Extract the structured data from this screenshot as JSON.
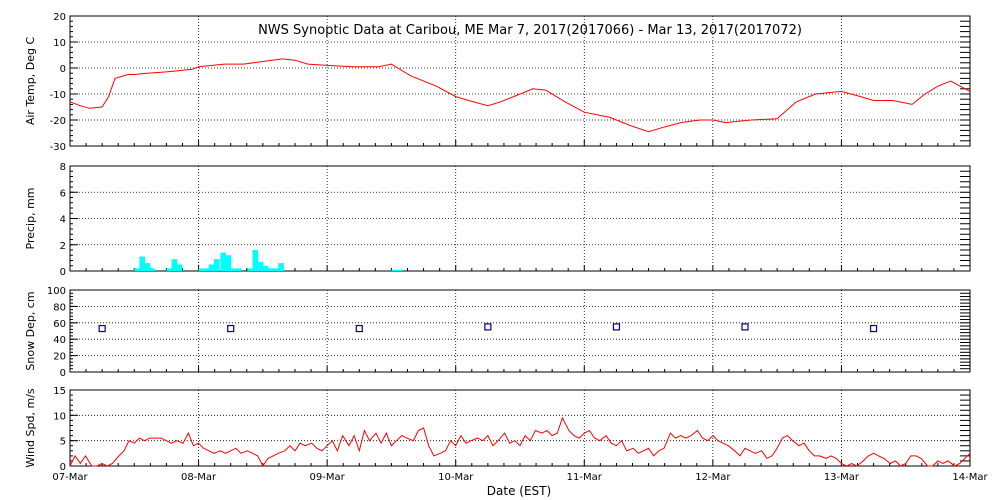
{
  "title": "NWS Synoptic Data at Caribou, ME   Mar  7, 2017(2017066) - Mar 13, 2017(2017072)",
  "x_label": "Date (EST)",
  "x_tick_labels": [
    "07-Mar",
    "08-Mar",
    "09-Mar",
    "10-Mar",
    "11-Mar",
    "12-Mar",
    "13-Mar",
    "14-Mar"
  ],
  "colors": {
    "line": "#ff0000",
    "precip": "#00ffff",
    "snow": "#00008b",
    "grid": "#000000"
  },
  "chart_data": [
    {
      "type": "line",
      "ylabel": "Air Temp, Deg C",
      "ylim": [
        -30,
        20
      ],
      "yticks": [
        -30,
        -20,
        -10,
        0,
        10,
        20
      ],
      "x_unit": "days since 07-Mar 00:00 EST",
      "xlim": [
        0,
        7
      ],
      "grid": true,
      "series": [
        {
          "x": [
            0,
            0.08,
            0.15,
            0.25,
            0.3,
            0.35,
            0.45,
            0.5,
            0.6,
            0.75,
            0.85,
            0.95,
            1.0,
            1.2,
            1.35,
            1.5,
            1.65,
            1.75,
            1.85,
            2.0,
            2.2,
            2.4,
            2.5,
            2.65,
            2.85,
            3.0,
            3.1,
            3.25,
            3.35,
            3.45,
            3.6,
            3.7,
            3.85,
            4.0,
            4.1,
            4.2,
            4.3,
            4.35,
            4.5,
            4.6,
            4.75,
            4.9,
            5.0,
            5.1,
            5.2,
            5.3,
            5.5,
            5.65,
            5.8,
            6.0,
            6.15,
            6.25,
            6.4,
            6.55,
            6.65,
            6.75,
            6.85,
            7.0
          ],
          "y": [
            -13,
            -14.5,
            -15.5,
            -15,
            -11,
            -4,
            -2.5,
            -2.5,
            -2,
            -1.5,
            -1,
            -0.5,
            0.5,
            1.5,
            1.5,
            2.5,
            3.5,
            3,
            1.5,
            1,
            0.5,
            0.5,
            1.5,
            -3,
            -7,
            -11,
            -12.5,
            -14.5,
            -13,
            -11,
            -8,
            -8.5,
            -13,
            -17,
            -18,
            -19,
            -21,
            -22,
            -24.5,
            -23,
            -21,
            -20,
            -20,
            -21,
            -20.5,
            -20,
            -19.5,
            -13,
            -10,
            -9,
            -11,
            -12.5,
            -12.5,
            -14,
            -10,
            -7,
            -5,
            -9
          ]
        }
      ]
    },
    {
      "type": "bar",
      "ylabel": "Precip, mm",
      "ylim": [
        0,
        8
      ],
      "yticks": [
        0,
        2,
        4,
        6,
        8
      ],
      "x_unit": "days since 07-Mar 00:00 EST",
      "xlim": [
        0,
        7
      ],
      "grid": true,
      "series": [
        {
          "x": [
            0.5,
            0.54,
            0.58,
            0.62,
            0.75,
            0.79,
            0.83,
            1.0,
            1.04,
            1.08,
            1.12,
            1.17,
            1.21,
            1.25,
            1.29,
            1.38,
            1.42,
            1.46,
            1.5,
            1.54,
            1.58,
            1.62,
            2.5,
            2.54
          ],
          "values": [
            0.2,
            1.1,
            0.6,
            0.2,
            0.2,
            0.9,
            0.5,
            0.2,
            0.2,
            0.5,
            0.9,
            1.4,
            1.2,
            0.2,
            0.2,
            0.2,
            1.6,
            0.7,
            0.4,
            0.2,
            0.2,
            0.6,
            0.1,
            0.1
          ]
        }
      ]
    },
    {
      "type": "scatter",
      "ylabel": "Snow Dep, cm",
      "ylim": [
        0,
        100
      ],
      "yticks": [
        0,
        20,
        40,
        60,
        80,
        100
      ],
      "x_unit": "days since 07-Mar 00:00 EST",
      "xlim": [
        0,
        7
      ],
      "grid": true,
      "series": [
        {
          "x": [
            0.25,
            1.25,
            2.25,
            3.25,
            4.25,
            5.25,
            6.25
          ],
          "y": [
            53,
            53,
            53,
            55,
            55,
            55,
            53
          ]
        }
      ]
    },
    {
      "type": "line",
      "ylabel": "Wind Spd, m/s",
      "ylim": [
        0,
        15
      ],
      "yticks": [
        0,
        5,
        10,
        15
      ],
      "x_unit": "days since 07-Mar 00:00 EST",
      "xlim": [
        0,
        7
      ],
      "grid": true,
      "series": [
        {
          "x": [
            0,
            0.04,
            0.08,
            0.12,
            0.17,
            0.21,
            0.25,
            0.29,
            0.33,
            0.38,
            0.42,
            0.46,
            0.5,
            0.54,
            0.58,
            0.62,
            0.67,
            0.71,
            0.75,
            0.79,
            0.83,
            0.88,
            0.92,
            0.96,
            1.0,
            1.04,
            1.08,
            1.12,
            1.17,
            1.21,
            1.25,
            1.29,
            1.33,
            1.38,
            1.42,
            1.46,
            1.5,
            1.54,
            1.58,
            1.62,
            1.67,
            1.71,
            1.75,
            1.79,
            1.83,
            1.88,
            1.92,
            1.96,
            2.0,
            2.04,
            2.08,
            2.12,
            2.17,
            2.21,
            2.25,
            2.29,
            2.33,
            2.38,
            2.42,
            2.46,
            2.5,
            2.54,
            2.58,
            2.62,
            2.67,
            2.71,
            2.75,
            2.79,
            2.83,
            2.88,
            2.92,
            2.96,
            3.0,
            3.04,
            3.08,
            3.12,
            3.17,
            3.21,
            3.25,
            3.29,
            3.33,
            3.38,
            3.42,
            3.46,
            3.5,
            3.54,
            3.58,
            3.62,
            3.67,
            3.71,
            3.75,
            3.79,
            3.83,
            3.88,
            3.92,
            3.96,
            4.0,
            4.04,
            4.08,
            4.12,
            4.17,
            4.21,
            4.25,
            4.29,
            4.33,
            4.38,
            4.42,
            4.46,
            4.5,
            4.54,
            4.58,
            4.62,
            4.67,
            4.71,
            4.75,
            4.79,
            4.83,
            4.88,
            4.92,
            4.96,
            5.0,
            5.04,
            5.08,
            5.12,
            5.17,
            5.21,
            5.25,
            5.29,
            5.33,
            5.38,
            5.42,
            5.46,
            5.5,
            5.54,
            5.58,
            5.62,
            5.67,
            5.71,
            5.75,
            5.79,
            5.83,
            5.88,
            5.92,
            5.96,
            6.0,
            6.04,
            6.08,
            6.12,
            6.17,
            6.21,
            6.25,
            6.29,
            6.33,
            6.38,
            6.42,
            6.46,
            6.5,
            6.54,
            6.58,
            6.62,
            6.67,
            6.71,
            6.75,
            6.79,
            6.83,
            6.88,
            6.92,
            6.96,
            7.0
          ],
          "y": [
            0,
            2,
            0.5,
            2,
            0,
            0,
            0.5,
            0,
            0.5,
            2,
            3,
            5,
            4.5,
            5.5,
            5,
            5.5,
            5.5,
            5.5,
            5,
            4.5,
            5,
            4.5,
            6.5,
            4,
            4.5,
            3.5,
            3,
            2.5,
            3,
            2.5,
            3,
            3.5,
            2.5,
            3,
            2.5,
            2,
            0,
            1.5,
            2,
            2.5,
            3,
            4,
            3,
            4.5,
            4,
            4.5,
            3.5,
            3,
            4,
            5,
            3,
            6,
            4,
            6,
            3,
            7,
            5,
            6.5,
            4.5,
            6.5,
            4,
            5,
            6,
            5.5,
            5,
            7,
            7.5,
            4,
            2,
            2.5,
            3,
            5,
            4,
            6,
            4.5,
            5,
            5.5,
            5,
            6,
            4,
            5,
            6.5,
            4.5,
            5,
            4,
            6,
            5,
            7,
            6.5,
            7,
            6,
            6.5,
            9.5,
            7,
            6,
            5.5,
            6.5,
            7,
            5.5,
            5,
            6,
            4.5,
            4,
            5,
            3,
            3.5,
            2.5,
            3,
            3.5,
            2,
            3,
            3.5,
            6.5,
            5.5,
            6,
            5.5,
            6,
            7,
            5.5,
            5,
            6,
            5,
            4.5,
            4,
            3,
            2,
            3.5,
            3,
            2.5,
            3,
            1.5,
            2,
            3.5,
            5.5,
            6,
            5,
            4,
            4.5,
            3,
            2,
            2,
            1.5,
            2,
            1.5,
            0.5,
            0,
            0.5,
            0,
            1,
            2,
            2.5,
            2,
            1.5,
            0.5,
            1,
            0,
            0.5,
            2,
            2,
            1.5,
            0,
            0,
            1,
            0.5,
            1,
            0,
            0.5,
            1.5,
            2.5
          ]
        }
      ]
    }
  ]
}
